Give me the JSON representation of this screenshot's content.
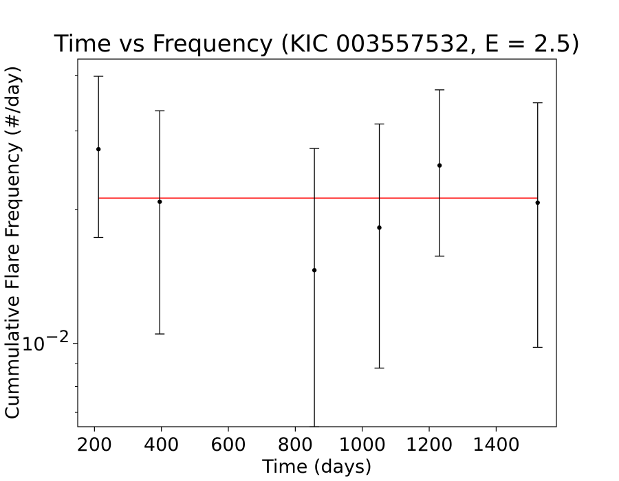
{
  "chart_data": {
    "type": "scatter",
    "title": "Time vs Frequency (KIC 003557532, E = 2.5)",
    "xlabel": "Time (days)",
    "ylabel": "Cummulative Flare Frequency (#/day)",
    "xlim": [
      150,
      1580
    ],
    "ylim": [
      0.0065,
      0.0435
    ],
    "yscale": "log",
    "grid": false,
    "x_ticks": [
      200,
      400,
      600,
      800,
      1000,
      1200,
      1400
    ],
    "x_tick_labels": [
      "200",
      "400",
      "600",
      "800",
      "1000",
      "1200",
      "1400"
    ],
    "y_major_ticks": [
      0.01
    ],
    "y_tick_label": {
      "base": "10",
      "exponent": "−2"
    },
    "y_minor_ticks": [
      0.007,
      0.008,
      0.009,
      0.02,
      0.03,
      0.04
    ],
    "series": [
      {
        "marker_color": "#000000",
        "points": [
          {
            "x": 212,
            "y": 0.0273,
            "yerr_low": 0.0173,
            "yerr_high": 0.0398
          },
          {
            "x": 395,
            "y": 0.0208,
            "yerr_low": 0.0105,
            "yerr_high": 0.0333
          },
          {
            "x": 857,
            "y": 0.0146,
            "yerr_low": 0.0065,
            "yerr_high": 0.0274
          },
          {
            "x": 1051,
            "y": 0.0182,
            "yerr_low": 0.0088,
            "yerr_high": 0.0311
          },
          {
            "x": 1231,
            "y": 0.0251,
            "yerr_low": 0.0157,
            "yerr_high": 0.0371
          },
          {
            "x": 1524,
            "y": 0.0207,
            "yerr_low": 0.0098,
            "yerr_high": 0.0347
          }
        ]
      }
    ],
    "reference_line": {
      "y": 0.0212,
      "x_start": 212,
      "x_end": 1524,
      "color": "#ff0000"
    }
  }
}
